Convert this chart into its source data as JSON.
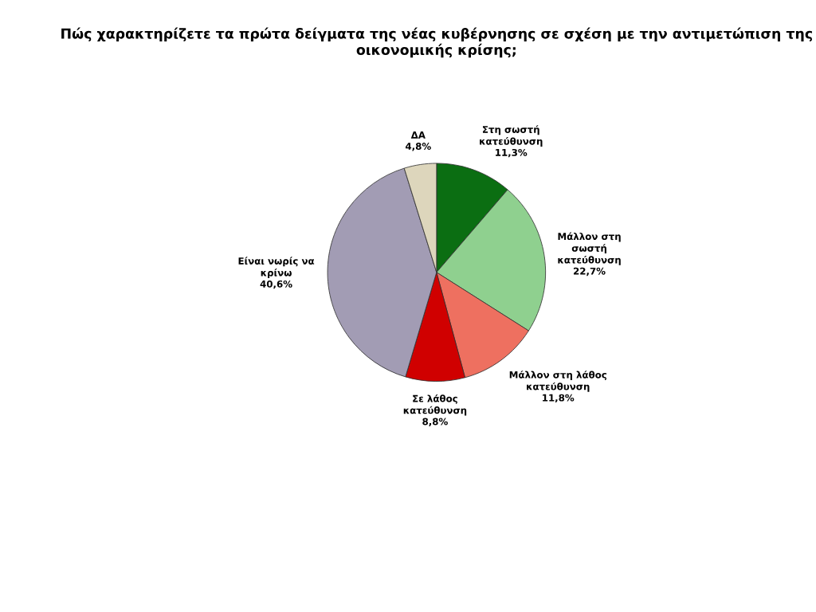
{
  "chart_data": {
    "type": "pie",
    "title": "Πώς χαρακτηρίζετε τα πρώτα δείγματα της νέας κυβέρνησης σε σχέση με την αντιμετώπιση της οικονομικής κρίσης;",
    "categories": [
      "Στη σωστή\nκατεύθυνση",
      "Μάλλον στη\nσωστή\nκατεύθυνση",
      "Μάλλον στη λάθος\nκατεύθυνση",
      "Σε λάθος\nκατεύθυνση",
      "Είναι νωρίς να\nκρίνω",
      "ΔΑ"
    ],
    "values": [
      11.3,
      22.7,
      11.8,
      8.8,
      40.6,
      4.8
    ],
    "value_labels": [
      "11,3%",
      "22,7%",
      "11,8%",
      "8,8%",
      "40,6%",
      "4,8%"
    ],
    "colors": [
      "#0b6e12",
      "#8fd08f",
      "#ee7060",
      "#d00000",
      "#a29cb4",
      "#ddd6bc"
    ],
    "legend": false
  }
}
